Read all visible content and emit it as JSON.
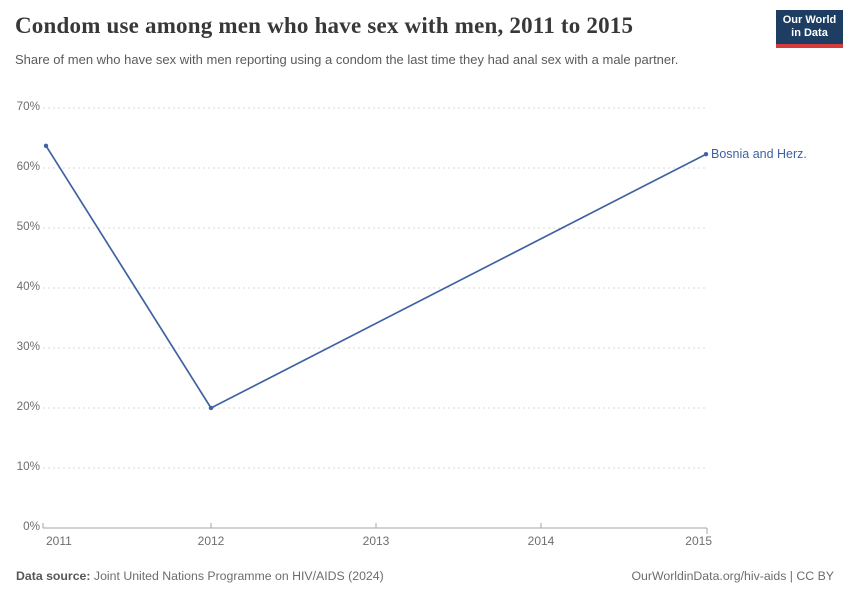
{
  "header": {
    "title": "Condom use among men who have sex with men, 2011 to 2015",
    "subtitle": "Share of men who have sex with men reporting using a condom the last time they had anal sex with a male partner.",
    "logo": {
      "line1": "Our World",
      "line2": "in Data",
      "bg_color": "#1d3d63",
      "accent_color": "#d73c3c"
    }
  },
  "chart_data": {
    "type": "line",
    "title": "Condom use among men who have sex with men, 2011 to 2015",
    "series": [
      {
        "name": "Bosnia and Herz.",
        "x": [
          2011,
          2012,
          2015
        ],
        "values": [
          63.7,
          20,
          62.3
        ],
        "color": "#3f63a2"
      }
    ],
    "x_ticks": [
      "2011",
      "2012",
      "2013",
      "2014",
      "2015"
    ],
    "y_ticks": [
      "0%",
      "10%",
      "20%",
      "30%",
      "40%",
      "50%",
      "60%",
      "70%"
    ],
    "xlim": [
      2011,
      2015
    ],
    "ylim": [
      0,
      70
    ],
    "ylabel": "",
    "xlabel": "",
    "legend_position": "end-of-line-label",
    "grid": "horizontal-dashed",
    "grid_color": "#dadada",
    "axis_color": "#a5a5a5"
  },
  "footer": {
    "source_label": "Data source:",
    "source_value": "Joint United Nations Programme on HIV/AIDS (2024)",
    "rights": "OurWorldinData.org/hiv-aids | CC BY"
  }
}
